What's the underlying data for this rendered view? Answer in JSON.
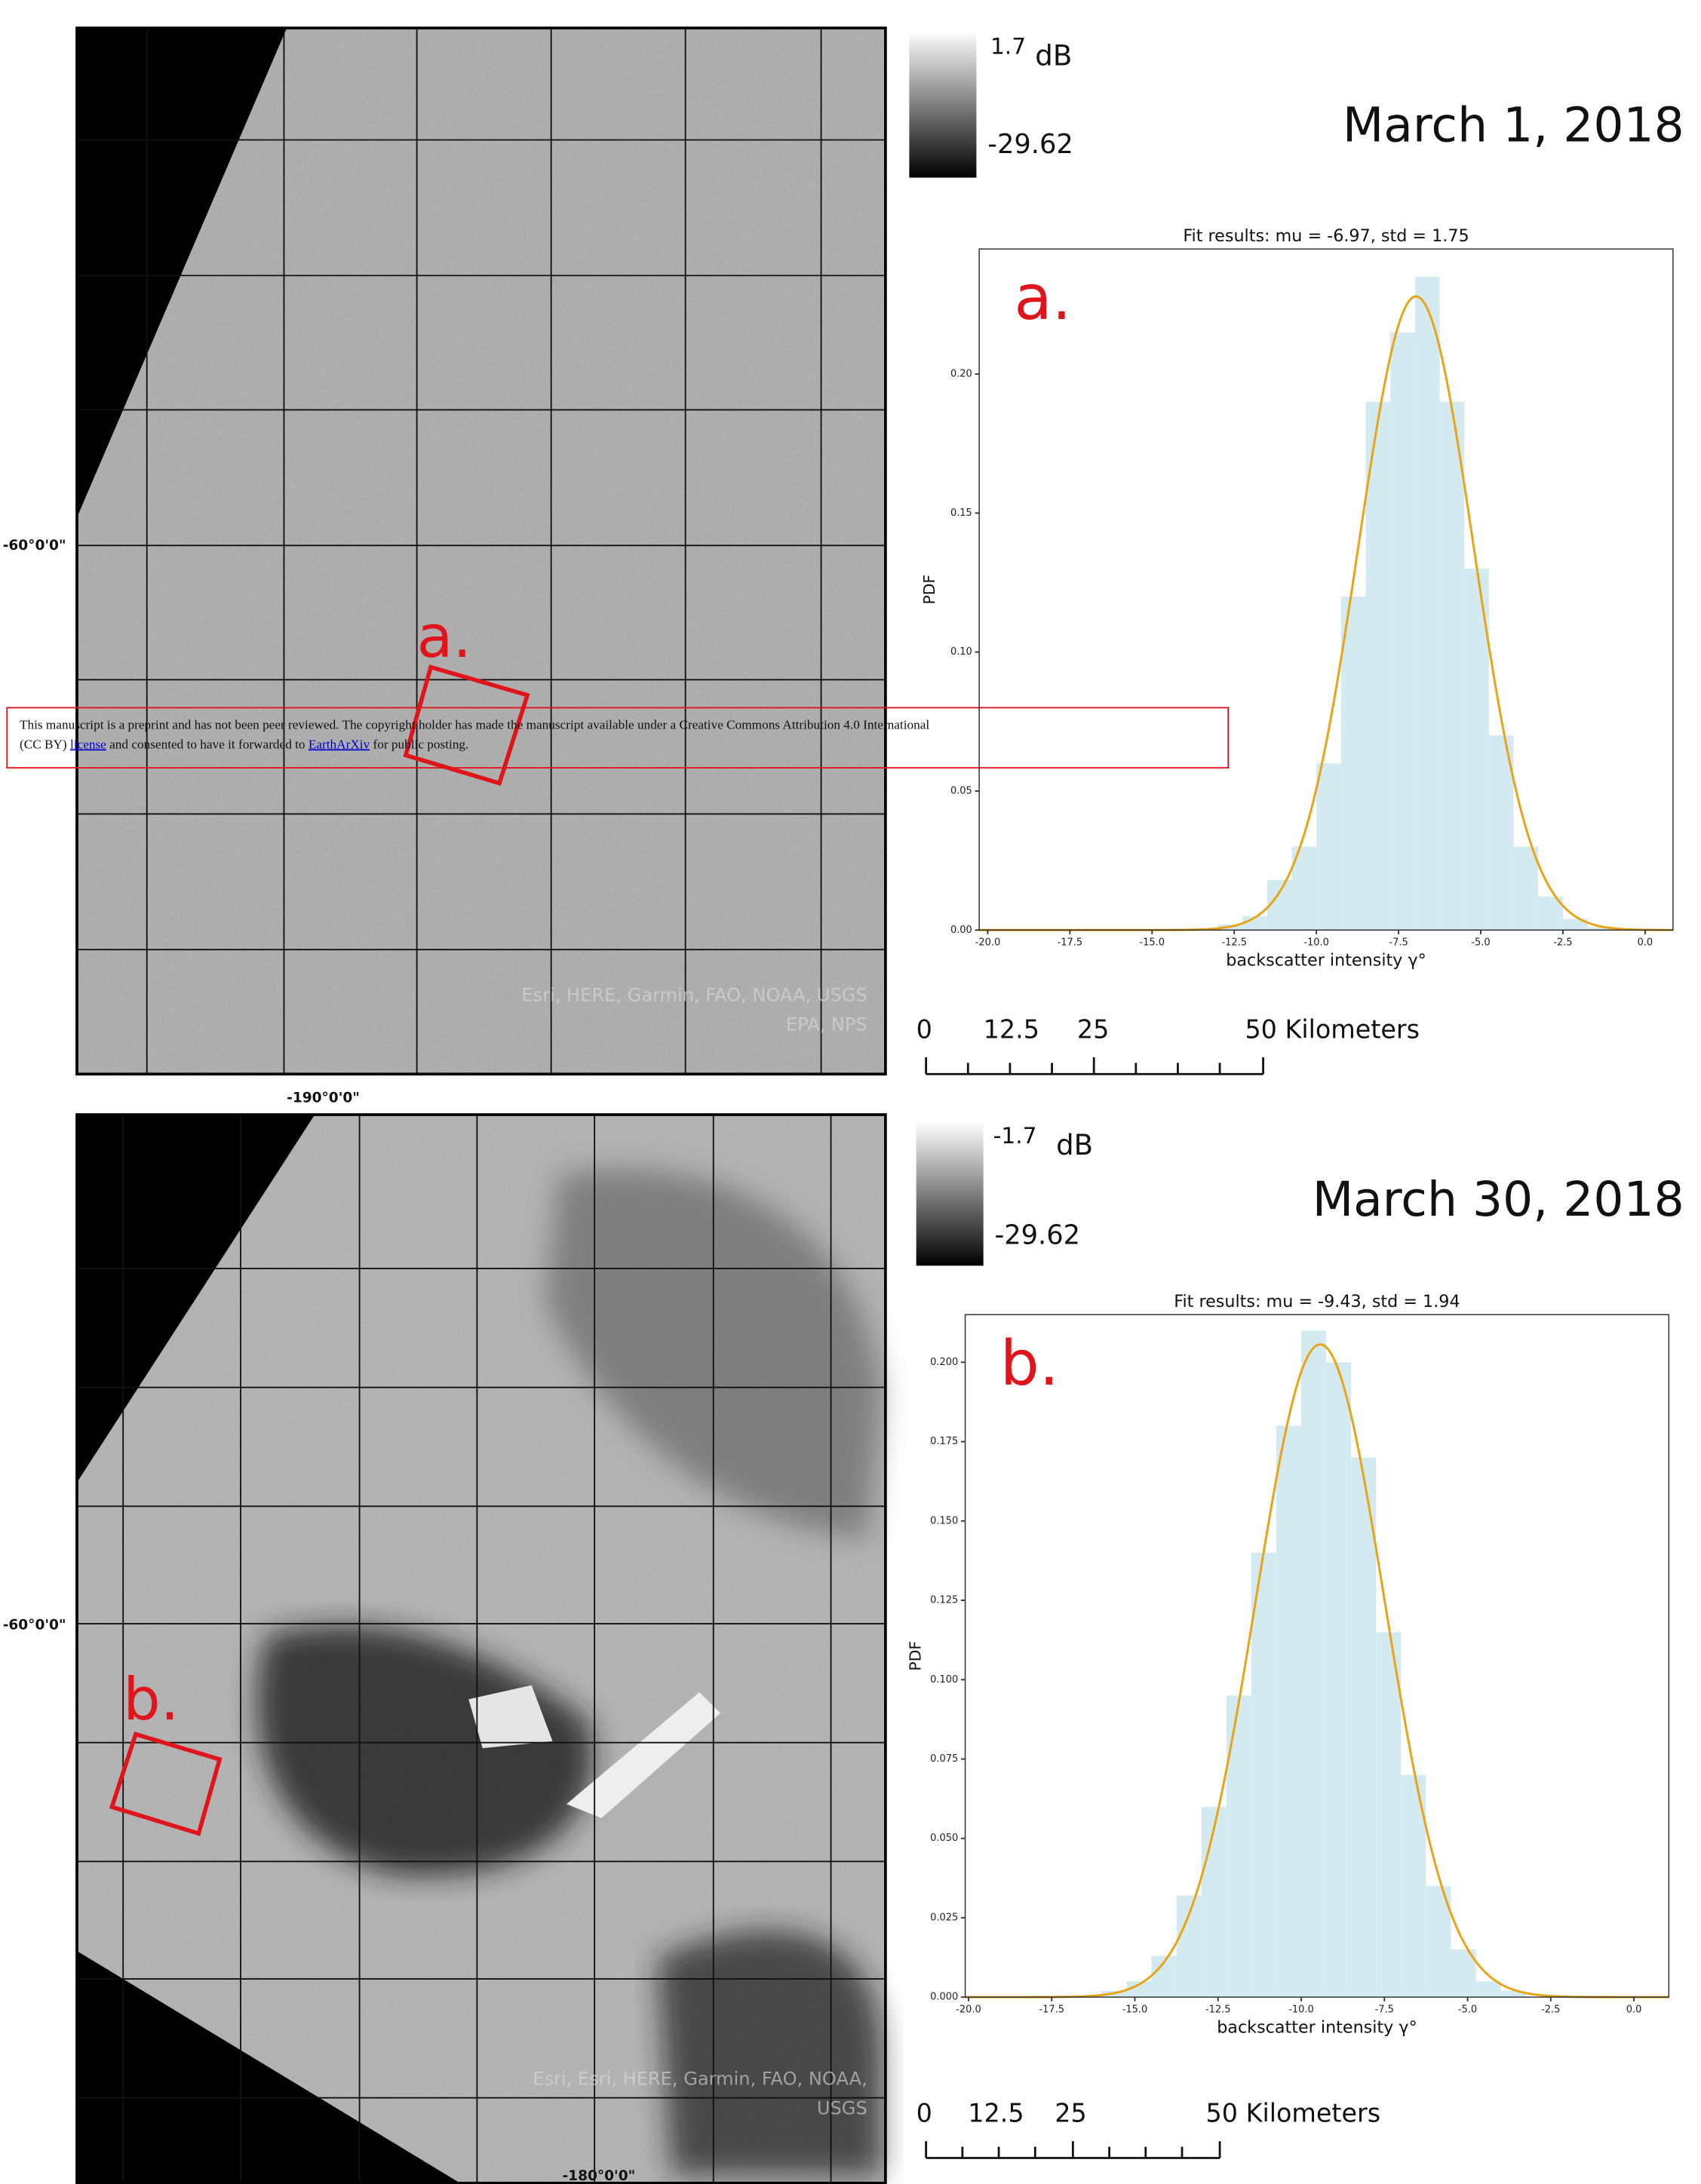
{
  "chart_data": [
    {
      "type": "histogram",
      "title": "Fit results: mu = -6.97,  std = 1.75",
      "panel_label": "a.",
      "xlabel": "backscatter intensity γ°",
      "ylabel": "PDF",
      "bins": [
        -13.0,
        -12.25,
        -11.5,
        -10.75,
        -10.0,
        -9.25,
        -8.5,
        -7.75,
        -7.0,
        -6.25,
        -5.5,
        -4.75,
        -4.0,
        -3.25,
        -2.5,
        -1.75,
        -1.0
      ],
      "values": [
        0.002,
        0.005,
        0.018,
        0.03,
        0.06,
        0.12,
        0.19,
        0.215,
        0.235,
        0.19,
        0.13,
        0.07,
        0.03,
        0.012,
        0.004,
        0.001
      ],
      "color": "#d3eaf0",
      "fit": {
        "mu": -6.97,
        "std": 1.75,
        "color": "#e8a317"
      },
      "xlim": [
        -20.26,
        0.85
      ],
      "ylim": [
        0,
        0.245
      ],
      "xticks": [
        {
          "value": -20,
          "label": "-20.0"
        },
        -17.5,
        {
          "value": -15,
          "label": "-15.0"
        },
        -12.5,
        {
          "value": -10,
          "label": "-10.0"
        },
        -7.5,
        {
          "value": -5,
          "label": "-5.0"
        },
        -2.5,
        {
          "value": 0,
          "label": "0.0"
        }
      ],
      "yticks": [
        {
          "value": 0,
          "label": "0.00"
        },
        0.05,
        {
          "value": 0.1,
          "label": "0.10"
        },
        0.15,
        {
          "value": 0.2,
          "label": "0.20"
        }
      ]
    },
    {
      "type": "histogram",
      "title": "Fit results: mu = -9.43,  std = 1.94",
      "panel_label": "b.",
      "xlabel": "backscatter intensity γ°",
      "ylabel": "PDF",
      "bins": [
        -16.0,
        -15.25,
        -14.5,
        -13.75,
        -13.0,
        -12.25,
        -11.5,
        -10.75,
        -10.0,
        -9.25,
        -8.5,
        -7.75,
        -7.0,
        -6.25,
        -5.5,
        -4.75,
        -4.0,
        -3.25
      ],
      "values": [
        0.002,
        0.005,
        0.013,
        0.032,
        0.06,
        0.095,
        0.14,
        0.18,
        0.21,
        0.2,
        0.17,
        0.115,
        0.07,
        0.035,
        0.015,
        0.005,
        0.002
      ],
      "color": "#d3eaf0",
      "fit": {
        "mu": -9.43,
        "std": 1.94,
        "color": "#e8a317"
      },
      "xlim": [
        -20.1,
        1.05
      ],
      "ylim": [
        0,
        0.215
      ],
      "xticks": [
        {
          "value": -20,
          "label": "-20.0"
        },
        -17.5,
        {
          "value": -15,
          "label": "-15.0"
        },
        -12.5,
        {
          "value": -10,
          "label": "-10.0"
        },
        -7.5,
        {
          "value": -5,
          "label": "-5.0"
        },
        -2.5,
        {
          "value": 0,
          "label": "0.0"
        }
      ],
      "yticks": [
        {
          "value": 0,
          "label": "0.000"
        },
        0.025,
        {
          "value": 0.05,
          "label": "0.050"
        },
        0.075,
        {
          "value": 0.1,
          "label": "0.100"
        },
        0.125,
        {
          "value": 0.15,
          "label": "0.150"
        },
        0.175,
        {
          "value": 0.2,
          "label": "0.200"
        }
      ]
    }
  ],
  "maps": [
    {
      "date": "March 1, 2018",
      "colorbar": {
        "max": "1.7",
        "unit": "dB",
        "min": "-29.62"
      },
      "lat_label": "-60°0'0\"",
      "lon_label": "-190°0'0\"",
      "box_label": "a.",
      "attribution": [
        "Esri, HERE, Garmin, FAO, NOAA, USGS",
        "EPA, NPS"
      ],
      "scale": [
        "0",
        "12.5",
        "25",
        "50 Kilometers"
      ]
    },
    {
      "date": "March 30, 2018",
      "colorbar": {
        "max": "-1.7",
        "unit": "dB",
        "min": "-29.62"
      },
      "lat_label": "-60°0'0\"",
      "lon_label": "-180°0'0\"",
      "box_label": "b.",
      "attribution": [
        "Esri, Esri, HERE, Garmin, FAO, NOAA,",
        "USGS"
      ],
      "scale": [
        "0",
        "12.5",
        "25",
        "50 Kilometers"
      ]
    }
  ],
  "notice": {
    "line1": "This manuscript is a preprint and has not been peer reviewed. The copyright holder has made the manuscript available under a Creative Commons Attribution 4.0 International",
    "line2": [
      "(CC BY) ",
      "license",
      " and consented to have it forwarded to ",
      "EarthArXiv",
      " for public posting."
    ]
  }
}
